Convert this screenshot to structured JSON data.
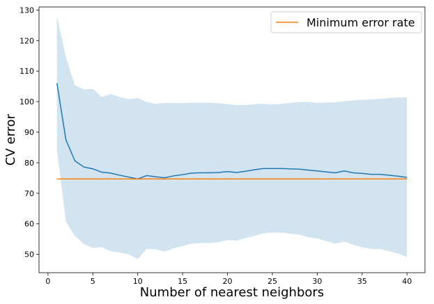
{
  "chart_data": {
    "type": "line",
    "xlabel": "Number of nearest neighbors",
    "ylabel": "CV error",
    "xlim": [
      -1,
      42
    ],
    "ylim": [
      44,
      131
    ],
    "xticks": [
      0,
      5,
      10,
      15,
      20,
      25,
      30,
      35,
      40
    ],
    "yticks": [
      50,
      60,
      70,
      80,
      90,
      100,
      110,
      120,
      130
    ],
    "grid": false,
    "legend": {
      "placement": "top-right",
      "entries": [
        "Minimum error rate"
      ]
    },
    "colors": {
      "mean_line": "#1f77b4",
      "band": "#1f77b4",
      "min_line": "#ff7f0e"
    },
    "x": [
      1,
      2,
      3,
      4,
      5,
      6,
      7,
      8,
      9,
      10,
      11,
      12,
      13,
      14,
      15,
      16,
      17,
      18,
      19,
      20,
      21,
      22,
      23,
      24,
      25,
      26,
      27,
      28,
      29,
      30,
      31,
      32,
      33,
      34,
      35,
      36,
      37,
      38,
      39,
      40
    ],
    "series": [
      {
        "kind": "mean",
        "values": [
          106,
          87.5,
          80.6,
          78.6,
          78,
          76.9,
          76.6,
          75.9,
          75.3,
          74.7,
          75.8,
          75.4,
          75.1,
          75.7,
          76.1,
          76.6,
          76.7,
          76.7,
          76.8,
          77.1,
          76.8,
          77.2,
          77.7,
          78.1,
          78.1,
          78.1,
          78,
          77.9,
          77.6,
          77.3,
          77,
          76.7,
          77.3,
          76.7,
          76.5,
          76.2,
          76.2,
          75.9,
          75.6,
          75.2
        ]
      },
      {
        "kind": "band_upper",
        "values": [
          128,
          114.5,
          105.4,
          104,
          104.2,
          101.5,
          102.5,
          101.5,
          100.8,
          101.2,
          99.9,
          99.3,
          99.6,
          99.5,
          99.5,
          99.6,
          99.7,
          99.6,
          99.5,
          99.2,
          98.9,
          98.9,
          99.2,
          99.3,
          99.1,
          99.3,
          99.6,
          99.9,
          99.9,
          99.6,
          99.7,
          99.8,
          100.1,
          100.4,
          100.6,
          100.7,
          100.9,
          101.2,
          101.4,
          101.4
        ]
      },
      {
        "kind": "band_lower",
        "values": [
          84,
          60.6,
          56.1,
          53.3,
          52.1,
          52.3,
          51,
          50.6,
          50,
          48.5,
          51.8,
          51.7,
          50.9,
          52,
          52.7,
          53.5,
          53.7,
          53.7,
          54,
          54.7,
          54.5,
          55.3,
          56,
          56.9,
          57.1,
          57.1,
          56.8,
          56.4,
          55.6,
          55.2,
          54.3,
          53.5,
          54.2,
          53.1,
          52.3,
          51.8,
          51.7,
          51.1,
          50.2,
          49.2
        ]
      },
      {
        "name": "Minimum error rate",
        "kind": "minimum",
        "x": [
          1,
          40
        ],
        "values": [
          74.7,
          74.7
        ]
      }
    ]
  }
}
